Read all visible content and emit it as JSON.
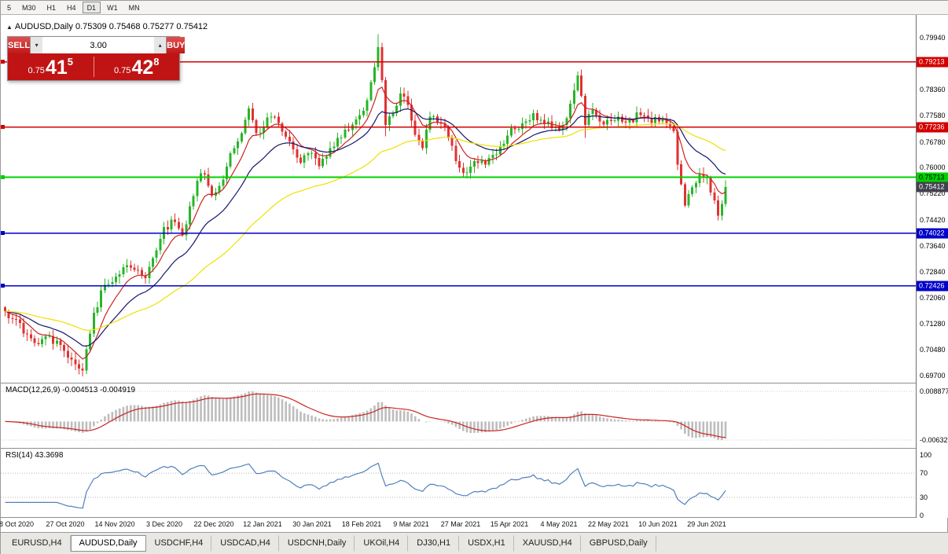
{
  "toolbar": {
    "timeframes": [
      "5",
      "M30",
      "H1",
      "H4",
      "D1",
      "W1",
      "MN"
    ],
    "active": "D1"
  },
  "chart_header": {
    "icon": "▲",
    "symbol": "AUDUSD,Daily",
    "ohlc": "0.75309 0.75468 0.75277 0.75412"
  },
  "trade_panel": {
    "sell_label": "SELL",
    "buy_label": "BUY",
    "volume": "3.00",
    "sell_price": {
      "prefix": "0.75",
      "big": "41",
      "sup": "5"
    },
    "buy_price": {
      "prefix": "0.75",
      "big": "42",
      "sup": "8"
    }
  },
  "macd": {
    "title": "MACD(12,26,9) -0.004513 -0.004919",
    "main_value": -0.004513,
    "signal_value": -0.004919,
    "axis_max_label": "0.008877",
    "axis_min_label": "-0.00632",
    "histogram_color": "#bdbdbd",
    "signal_color": "#cc2222"
  },
  "rsi": {
    "title": "RSI(14) 43.3698",
    "value": 43.3698,
    "levels": [
      100,
      70,
      30,
      0
    ],
    "line_color": "#4f81bd"
  },
  "tabs": [
    {
      "label": "EURUSD,H4",
      "active": false
    },
    {
      "label": "AUDUSD,Daily",
      "active": true
    },
    {
      "label": "USDCHF,H4",
      "active": false
    },
    {
      "label": "USDCAD,H4",
      "active": false
    },
    {
      "label": "USDCNH,Daily",
      "active": false
    },
    {
      "label": "UKOil,H4",
      "active": false
    },
    {
      "label": "DJ30,H1",
      "active": false
    },
    {
      "label": "USDX,H1",
      "active": false
    },
    {
      "label": "XAUUSD,H4",
      "active": false
    },
    {
      "label": "GBPUSD,Daily",
      "active": false
    }
  ],
  "chart_data": {
    "type": "candlestick",
    "symbol": "AUDUSD",
    "timeframe": "Daily",
    "ohlc_current": {
      "open": 0.75309,
      "high": 0.75468,
      "low": 0.75277,
      "close": 0.75412
    },
    "y_top": 0.7994,
    "y_bottom": 0.697,
    "y_ticks": [
      0.7994,
      0.7916,
      0.7836,
      0.7758,
      0.7678,
      0.76,
      0.7522,
      0.7442,
      0.7364,
      0.7284,
      0.7206,
      0.7128,
      0.7048,
      0.697
    ],
    "x_labels": [
      "8 Oct 2020",
      "27 Oct 2020",
      "14 Nov 2020",
      "3 Dec 2020",
      "22 Dec 2020",
      "12 Jan 2021",
      "30 Jan 2021",
      "18 Feb 2021",
      "9 Mar 2021",
      "27 Mar 2021",
      "15 Apr 2021",
      "4 May 2021",
      "22 May 2021",
      "10 Jun 2021",
      "29 Jun 2021"
    ],
    "num_candles": 196,
    "first_tick_index": 3,
    "tick_spacing": 13.357,
    "up_color": "#28b428",
    "down_color": "#e03232",
    "ma": [
      {
        "period": 8,
        "color": "#cc2222"
      },
      {
        "period": 20,
        "color": "#16166e"
      },
      {
        "period": 55,
        "color": "#f0e000"
      }
    ],
    "hlines": [
      {
        "price": 0.79213,
        "label": "0.79213",
        "color": "#d40000",
        "text_color": "#ffffff"
      },
      {
        "price": 0.77236,
        "label": "0.77236",
        "color": "#d40000",
        "text_color": "#ffffff"
      },
      {
        "price": 0.75713,
        "label": "0.75713",
        "color": "#00d200",
        "text_color": "#000000"
      },
      {
        "price": 0.74022,
        "label": "0.74022",
        "color": "#0000c8",
        "text_color": "#ffffff"
      },
      {
        "price": 0.72426,
        "label": "0.72426",
        "color": "#0000c8",
        "text_color": "#ffffff"
      }
    ],
    "current_price": {
      "value": 0.75412,
      "label": "0.75412",
      "box_color": "#42424e",
      "text_color": "#ffffff"
    },
    "close_waypoints": [
      [
        0,
        0.7165
      ],
      [
        3,
        0.714
      ],
      [
        6,
        0.7095
      ],
      [
        9,
        0.7065
      ],
      [
        12,
        0.709
      ],
      [
        16,
        0.7045
      ],
      [
        19,
        0.7005
      ],
      [
        21,
        0.6985
      ],
      [
        24,
        0.716
      ],
      [
        27,
        0.7245
      ],
      [
        30,
        0.727
      ],
      [
        33,
        0.7305
      ],
      [
        36,
        0.729
      ],
      [
        38,
        0.7265
      ],
      [
        41,
        0.735
      ],
      [
        43,
        0.742
      ],
      [
        46,
        0.7435
      ],
      [
        48,
        0.7395
      ],
      [
        52,
        0.756
      ],
      [
        54,
        0.758
      ],
      [
        56,
        0.7515
      ],
      [
        58,
        0.7545
      ],
      [
        62,
        0.766
      ],
      [
        65,
        0.7745
      ],
      [
        66,
        0.778
      ],
      [
        68,
        0.7705
      ],
      [
        70,
        0.7725
      ],
      [
        72,
        0.7755
      ],
      [
        74,
        0.7735
      ],
      [
        77,
        0.768
      ],
      [
        80,
        0.7615
      ],
      [
        83,
        0.7645
      ],
      [
        85,
        0.7605
      ],
      [
        88,
        0.766
      ],
      [
        92,
        0.7715
      ],
      [
        96,
        0.776
      ],
      [
        98,
        0.7805
      ],
      [
        100,
        0.7905
      ],
      [
        101,
        0.7965
      ],
      [
        102,
        0.7865
      ],
      [
        103,
        0.773
      ],
      [
        105,
        0.7765
      ],
      [
        107,
        0.7825
      ],
      [
        109,
        0.779
      ],
      [
        111,
        0.77
      ],
      [
        113,
        0.766
      ],
      [
        115,
        0.7755
      ],
      [
        118,
        0.7735
      ],
      [
        120,
        0.769
      ],
      [
        123,
        0.76
      ],
      [
        125,
        0.7585
      ],
      [
        127,
        0.762
      ],
      [
        130,
        0.761
      ],
      [
        133,
        0.764
      ],
      [
        137,
        0.772
      ],
      [
        140,
        0.7735
      ],
      [
        143,
        0.7765
      ],
      [
        145,
        0.7745
      ],
      [
        148,
        0.772
      ],
      [
        150,
        0.7715
      ],
      [
        152,
        0.775
      ],
      [
        154,
        0.7835
      ],
      [
        155,
        0.788
      ],
      [
        157,
        0.773
      ],
      [
        159,
        0.7775
      ],
      [
        161,
        0.774
      ],
      [
        163,
        0.7745
      ],
      [
        166,
        0.7755
      ],
      [
        169,
        0.7745
      ],
      [
        172,
        0.776
      ],
      [
        174,
        0.775
      ],
      [
        177,
        0.774
      ],
      [
        179,
        0.7735
      ],
      [
        181,
        0.771
      ],
      [
        182,
        0.761
      ],
      [
        183,
        0.755
      ],
      [
        184,
        0.7485
      ],
      [
        186,
        0.754
      ],
      [
        188,
        0.758
      ],
      [
        190,
        0.757
      ],
      [
        191,
        0.7525
      ],
      [
        193,
        0.7455
      ],
      [
        194,
        0.749
      ],
      [
        195,
        0.75412
      ]
    ],
    "extremes": [
      {
        "i": 21,
        "low": 0.6968
      },
      {
        "i": 101,
        "high": 0.8005
      },
      {
        "i": 103,
        "low": 0.7695
      },
      {
        "i": 157,
        "low": 0.769
      },
      {
        "i": 193,
        "low": 0.744
      }
    ]
  }
}
